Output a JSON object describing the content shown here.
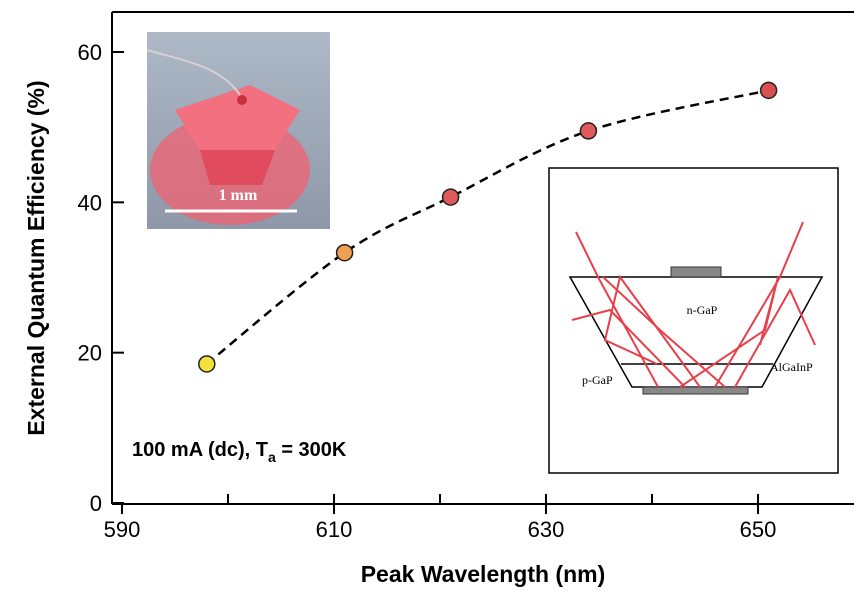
{
  "chart_data": {
    "type": "scatter",
    "title": "",
    "xlabel": "Peak Wavelength (nm)",
    "ylabel": "External Quantum Efficiency (%)",
    "xlim": [
      590,
      655
    ],
    "ylim": [
      0,
      65
    ],
    "xticks": [
      590,
      610,
      630,
      650
    ],
    "yticks": [
      0,
      20,
      40,
      60
    ],
    "grid": false,
    "series": [
      {
        "x": [
          598,
          611,
          621,
          634,
          651
        ],
        "y": [
          18.5,
          33.3,
          40.7,
          49.5,
          54.9
        ],
        "colors": [
          "#f2e23a",
          "#f0a050",
          "#e05a5a",
          "#e05a5a",
          "#d85050"
        ],
        "line_style": "dashed"
      }
    ],
    "annotation": {
      "prefix": "100 mA (dc), T",
      "subscript": "a",
      "suffix": " = 300K"
    }
  },
  "photo_inset": {
    "scale_label": "1 mm"
  },
  "diagram_inset": {
    "labels": {
      "top_layer": "n-GaP",
      "bottom_left": "p-GaP",
      "active_layer": "AlGaInP"
    },
    "ray_color": "#e8404a"
  }
}
